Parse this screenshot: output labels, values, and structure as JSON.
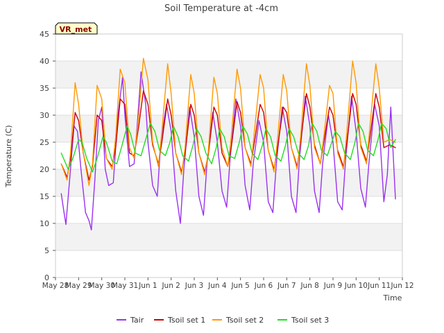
{
  "chart_data": {
    "type": "line",
    "title": "Soil Temperature at -4cm",
    "xlabel": "Time",
    "ylabel": "Temperature (C)",
    "ylim": [
      0,
      45
    ],
    "yticks": [
      0,
      5,
      10,
      15,
      20,
      25,
      30,
      35,
      40,
      45
    ],
    "xlim": [
      0,
      15
    ],
    "xticks": [
      0,
      1,
      2,
      3,
      4,
      5,
      6,
      7,
      8,
      9,
      10,
      11,
      12,
      13,
      14,
      15
    ],
    "xtick_labels": [
      "May 28",
      "May 29",
      "May 30",
      "May 31",
      "Jun 1",
      "Jun 2",
      "Jun 3",
      "Jun 4",
      "Jun 5",
      "Jun 6",
      "Jun 7",
      "Jun 8",
      "Jun 9",
      "Jun 10",
      "Jun 11",
      "Jun 12"
    ],
    "grid": true,
    "annotation": "VR_met",
    "legend_position": "bottom",
    "series": [
      {
        "name": "Tair",
        "color": "#9b30f0",
        "x": [
          0.25,
          0.35,
          0.45,
          0.6,
          0.8,
          0.95,
          1.1,
          1.3,
          1.45,
          1.55,
          1.7,
          1.85,
          2.0,
          2.15,
          2.3,
          2.5,
          2.7,
          2.9,
          3.0,
          3.2,
          3.4,
          3.55,
          3.7,
          3.9,
          4.0,
          4.2,
          4.4,
          4.55,
          4.8,
          5.0,
          5.2,
          5.4,
          5.55,
          5.8,
          6.0,
          6.2,
          6.4,
          6.55,
          6.8,
          7.0,
          7.2,
          7.4,
          7.55,
          7.8,
          8.0,
          8.2,
          8.4,
          8.55,
          8.8,
          9.0,
          9.2,
          9.4,
          9.55,
          9.8,
          10.0,
          10.2,
          10.4,
          10.55,
          10.8,
          11.0,
          11.2,
          11.4,
          11.55,
          11.8,
          12.0,
          12.2,
          12.4,
          12.55,
          12.8,
          13.0,
          13.2,
          13.4,
          13.55,
          13.8,
          14.0,
          14.2,
          14.35,
          14.5,
          14.7
        ],
        "y": [
          15.5,
          12.5,
          9.8,
          17.5,
          28.0,
          27.0,
          20.0,
          12.0,
          10.5,
          8.8,
          18.0,
          29.0,
          31.5,
          20.0,
          17.0,
          17.5,
          30.0,
          37.0,
          30.0,
          20.5,
          21.0,
          29.0,
          38.0,
          32.0,
          25.0,
          17.0,
          15.0,
          25.0,
          32.0,
          27.0,
          16.0,
          10.0,
          20.0,
          31.5,
          26.0,
          15.0,
          11.5,
          21.0,
          30.5,
          25.0,
          16.0,
          13.0,
          22.0,
          33.0,
          28.0,
          17.0,
          12.5,
          21.0,
          29.0,
          25.0,
          14.0,
          12.0,
          21.0,
          31.5,
          27.0,
          15.0,
          12.0,
          22.0,
          33.5,
          28.0,
          16.0,
          12.0,
          21.0,
          30.0,
          25.0,
          14.0,
          12.5,
          22.0,
          33.5,
          27.0,
          16.5,
          13.0,
          21.0,
          32.0,
          28.0,
          14.0,
          19.0,
          31.5,
          14.5
        ]
      },
      {
        "name": "Tsoil set 1",
        "color": "#cc0000",
        "x": [
          0.25,
          0.5,
          0.65,
          0.85,
          1.0,
          1.2,
          1.45,
          1.6,
          1.8,
          2.0,
          2.2,
          2.45,
          2.6,
          2.8,
          3.0,
          3.2,
          3.4,
          3.6,
          3.8,
          4.0,
          4.2,
          4.45,
          4.6,
          4.85,
          5.0,
          5.2,
          5.45,
          5.6,
          5.85,
          6.0,
          6.2,
          6.45,
          6.6,
          6.85,
          7.0,
          7.2,
          7.45,
          7.6,
          7.85,
          8.0,
          8.2,
          8.45,
          8.6,
          8.85,
          9.0,
          9.2,
          9.45,
          9.6,
          9.85,
          10.0,
          10.2,
          10.45,
          10.6,
          10.85,
          11.0,
          11.2,
          11.45,
          11.6,
          11.85,
          12.0,
          12.2,
          12.45,
          12.6,
          12.85,
          13.0,
          13.2,
          13.45,
          13.6,
          13.85,
          14.0,
          14.2,
          14.45,
          14.7
        ],
        "y": [
          21.0,
          18.5,
          22.0,
          30.5,
          29.0,
          23.0,
          18.0,
          20.5,
          30.0,
          29.0,
          22.0,
          20.5,
          24.0,
          33.0,
          32.0,
          23.0,
          22.5,
          28.0,
          34.5,
          32.0,
          24.5,
          21.0,
          25.0,
          33.0,
          30.0,
          23.0,
          19.5,
          23.0,
          32.0,
          30.0,
          23.0,
          19.5,
          22.5,
          31.5,
          30.0,
          23.0,
          20.5,
          24.0,
          32.5,
          30.5,
          24.0,
          21.0,
          25.0,
          32.0,
          30.5,
          23.5,
          20.0,
          24.0,
          31.5,
          30.5,
          24.0,
          20.5,
          25.0,
          34.0,
          31.5,
          24.5,
          21.0,
          25.0,
          31.5,
          30.0,
          23.5,
          20.5,
          25.0,
          34.0,
          32.0,
          24.5,
          21.5,
          26.0,
          34.0,
          31.5,
          24.0,
          24.5,
          24.0
        ]
      },
      {
        "name": "Tsoil set 2",
        "color": "#ff9900",
        "x": [
          0.25,
          0.5,
          0.65,
          0.85,
          1.0,
          1.2,
          1.45,
          1.6,
          1.8,
          2.0,
          2.2,
          2.45,
          2.6,
          2.8,
          3.0,
          3.2,
          3.4,
          3.6,
          3.8,
          4.0,
          4.2,
          4.45,
          4.6,
          4.85,
          5.0,
          5.2,
          5.45,
          5.6,
          5.85,
          6.0,
          6.2,
          6.45,
          6.6,
          6.85,
          7.0,
          7.2,
          7.45,
          7.6,
          7.85,
          8.0,
          8.2,
          8.45,
          8.6,
          8.85,
          9.0,
          9.2,
          9.45,
          9.6,
          9.85,
          10.0,
          10.2,
          10.45,
          10.6,
          10.85,
          11.0,
          11.2,
          11.45,
          11.6,
          11.85,
          12.0,
          12.2,
          12.45,
          12.6,
          12.85,
          13.0,
          13.2,
          13.45,
          13.6,
          13.85,
          14.0,
          14.2,
          14.45,
          14.7
        ],
        "y": [
          21.0,
          18.0,
          23.0,
          36.0,
          32.0,
          23.0,
          17.0,
          21.0,
          35.5,
          33.0,
          22.0,
          20.0,
          26.0,
          38.5,
          36.0,
          24.0,
          22.0,
          30.0,
          40.5,
          36.5,
          25.0,
          20.5,
          27.0,
          39.5,
          34.0,
          23.0,
          19.0,
          24.0,
          37.5,
          34.0,
          23.0,
          19.0,
          23.0,
          37.0,
          34.0,
          24.0,
          20.5,
          26.0,
          38.5,
          35.0,
          24.0,
          20.5,
          27.0,
          37.5,
          35.0,
          23.5,
          19.5,
          25.5,
          37.5,
          34.5,
          24.0,
          20.0,
          26.0,
          39.5,
          35.5,
          24.0,
          21.0,
          26.0,
          35.5,
          34.0,
          23.0,
          20.0,
          27.0,
          40.0,
          36.0,
          24.0,
          21.0,
          28.0,
          39.5,
          35.0,
          25.0,
          25.5,
          25.0
        ]
      },
      {
        "name": "Tsoil set 3",
        "color": "#22dd22",
        "x": [
          0.25,
          0.55,
          0.75,
          1.0,
          1.15,
          1.35,
          1.6,
          1.8,
          2.05,
          2.2,
          2.45,
          2.65,
          2.85,
          3.1,
          3.25,
          3.45,
          3.7,
          3.9,
          4.1,
          4.3,
          4.5,
          4.75,
          4.95,
          5.1,
          5.3,
          5.5,
          5.75,
          5.95,
          6.1,
          6.3,
          6.5,
          6.75,
          6.95,
          7.1,
          7.3,
          7.5,
          7.75,
          7.95,
          8.1,
          8.3,
          8.5,
          8.75,
          8.95,
          9.1,
          9.3,
          9.5,
          9.75,
          9.95,
          10.1,
          10.3,
          10.5,
          10.75,
          10.95,
          11.1,
          11.3,
          11.5,
          11.75,
          11.95,
          12.1,
          12.3,
          12.5,
          12.75,
          12.95,
          13.1,
          13.3,
          13.5,
          13.75,
          13.95,
          14.1,
          14.3,
          14.5,
          14.7
        ],
        "y": [
          23.0,
          20.0,
          22.0,
          25.5,
          25.0,
          22.0,
          19.5,
          22.0,
          26.0,
          25.0,
          21.5,
          21.0,
          24.0,
          28.0,
          26.5,
          23.0,
          22.5,
          25.5,
          28.5,
          27.0,
          23.5,
          22.5,
          25.0,
          28.0,
          26.0,
          22.5,
          21.5,
          24.5,
          27.5,
          26.0,
          23.0,
          21.0,
          24.0,
          27.5,
          26.0,
          22.5,
          22.0,
          25.0,
          28.0,
          26.5,
          23.0,
          21.8,
          24.5,
          27.5,
          26.0,
          22.5,
          21.5,
          24.5,
          27.5,
          26.0,
          23.0,
          21.8,
          24.5,
          28.5,
          27.0,
          23.5,
          22.5,
          25.0,
          27.0,
          26.0,
          23.0,
          21.8,
          25.0,
          28.5,
          27.0,
          23.5,
          22.5,
          25.5,
          28.5,
          27.5,
          24.0,
          25.5
        ]
      }
    ]
  }
}
